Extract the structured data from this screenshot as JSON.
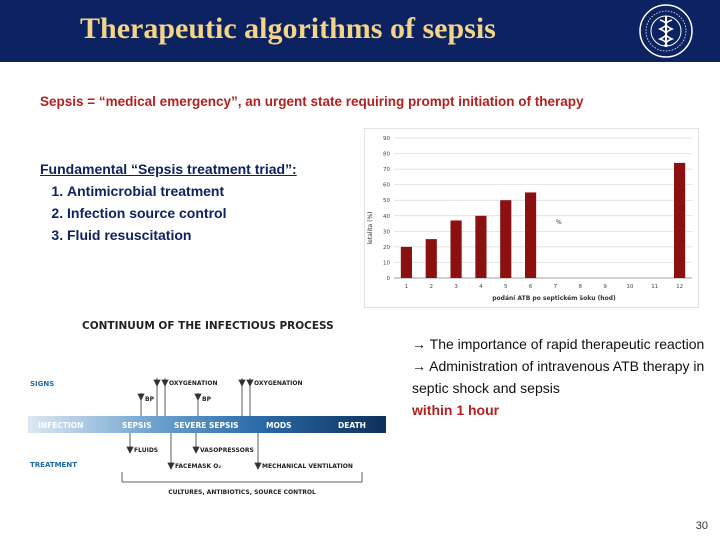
{
  "slide": {
    "title": "Therapeutic algorithms of sepsis",
    "headline": "Sepsis = “medical emergency”, an urgent state requiring prompt initiation of therapy",
    "triad": {
      "title": "Fundamental “Sepsis treatment triad”:",
      "items": [
        "Antimicrobial treatment",
        "Infection source control",
        "Fluid resuscitation"
      ]
    },
    "notes": {
      "line1": "→ The importance of rapid therapeutic reaction",
      "line2": "→ Administration of intravenous ATB therapy in septic shock and sepsis",
      "line3": "within 1 hour"
    },
    "page_number": "30"
  },
  "chart_data": {
    "type": "bar",
    "categories": [
      "1",
      "2",
      "3",
      "4",
      "5",
      "6",
      "7",
      "8",
      "9",
      "10",
      "11",
      "12"
    ],
    "values": [
      20,
      25,
      37,
      40,
      50,
      55,
      0,
      0,
      0,
      0,
      0,
      74
    ],
    "ylim": [
      0,
      90
    ],
    "yticks": [
      0,
      10,
      20,
      30,
      40,
      50,
      60,
      70,
      80,
      90
    ],
    "ylabel": "letalita (%)",
    "xlabel": "podání ATB po septickém šoku (hod)",
    "series_label": "%",
    "bar_color": "#8b1010",
    "grid": true
  },
  "continuum": {
    "title": "CONTINUUM OF THE INFECTIOUS PROCESS",
    "row_labels": {
      "signs": "SIGNS",
      "treatment": "TREATMENT"
    },
    "stages": [
      "INFECTION",
      "SEPSIS",
      "SEVERE SEPSIS",
      "MODS",
      "DEATH"
    ],
    "signs": [
      "BP",
      "OXYGENATION",
      "BP",
      "OXYGENATION"
    ],
    "treatments": [
      "FLUIDS",
      "VASOPRESSORS",
      "FACEMASK O₂",
      "MECHANICAL VENTILATION"
    ],
    "bottom": "CULTURES, ANTIBIOTICS, SOURCE CONTROL"
  },
  "colors": {
    "header_bg": "#0d2260",
    "title": "#f3d488",
    "accent_red": "#b41f1f",
    "bar": "#8b1010"
  }
}
